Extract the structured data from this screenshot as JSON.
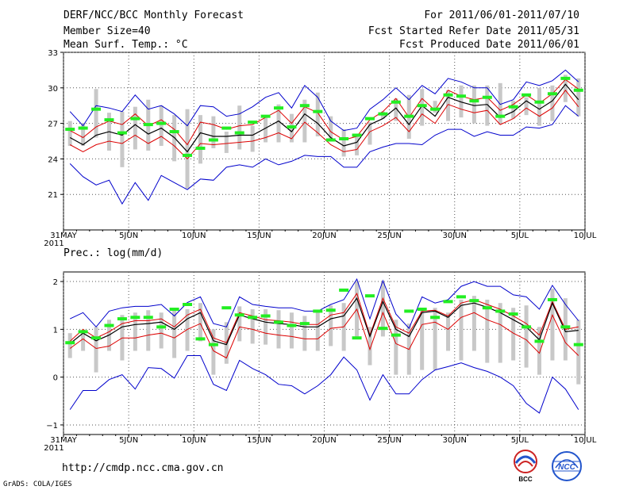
{
  "header": {
    "title": "DERF/NCC/BCC Monthly Forecast",
    "member_size": "Member Size=40",
    "variable": "Mean Surf. Temp.: °C",
    "period": "For 2011/06/01-2011/07/10",
    "started": "Fcst Started Refer Date 2011/05/31",
    "produced": "Fcst Produced Date 2011/06/01"
  },
  "footer": {
    "url": "http://cmdp.ncc.cma.gov.cn",
    "credit": "GrADS: COLA/IGES",
    "logo_bcc": "BCC",
    "logo_ncc": "NCC"
  },
  "colors": {
    "max_min": "#0000cc",
    "spread": "#dd0000",
    "mean": "#000000",
    "box": "#c8c8c8",
    "marker": "#22ee22",
    "grid": "#555555"
  },
  "chart_data": [
    {
      "type": "line",
      "title": "Mean Surf. Temp.: °C",
      "x": [
        0,
        1,
        2,
        3,
        4,
        5,
        6,
        7,
        8,
        9,
        10,
        11,
        12,
        13,
        14,
        15,
        16,
        17,
        18,
        19,
        20,
        21,
        22,
        23,
        24,
        25,
        26,
        27,
        28,
        29,
        30,
        31,
        32,
        33,
        34,
        35,
        36,
        37,
        38,
        39
      ],
      "xticks": [
        0,
        5,
        10,
        15,
        20,
        25,
        30,
        35,
        40
      ],
      "xticklabels": [
        "31MAY",
        "5JUN",
        "10JUN",
        "15JUN",
        "20JUN",
        "25JUN",
        "30JUN",
        "5JUL",
        "10JUL"
      ],
      "xsublabel": "2011",
      "yticks": [
        21,
        24,
        27,
        30,
        33
      ],
      "yticklabels": [
        "21",
        "24",
        "27",
        "30",
        "33"
      ],
      "ylim": [
        18,
        33
      ],
      "series": [
        {
          "name": "max",
          "values": [
            28.0,
            26.8,
            28.5,
            28.3,
            28.0,
            29.4,
            28.2,
            28.5,
            27.8,
            26.8,
            28.5,
            28.4,
            27.6,
            27.8,
            28.4,
            29.2,
            29.6,
            28.3,
            30.2,
            29.2,
            27.2,
            26.4,
            26.6,
            28.2,
            29.0,
            30.0,
            29.0,
            30.2,
            29.5,
            30.8,
            30.5,
            30.0,
            30.0,
            28.6,
            29.0,
            30.5,
            30.2,
            30.6,
            31.5,
            30.5
          ]
        },
        {
          "name": "upper",
          "values": [
            26.4,
            25.8,
            26.7,
            27.2,
            26.9,
            27.8,
            26.8,
            27.3,
            26.5,
            25.2,
            27.1,
            26.9,
            26.5,
            26.8,
            26.9,
            27.5,
            28.1,
            27.0,
            28.4,
            27.9,
            26.3,
            25.6,
            25.9,
            27.3,
            28.0,
            29.1,
            27.5,
            29.1,
            28.1,
            29.8,
            29.3,
            29.0,
            29.2,
            28.1,
            28.6,
            29.4,
            28.7,
            29.5,
            30.7,
            29.9
          ]
        },
        {
          "name": "mean",
          "values": [
            25.8,
            25.2,
            26.0,
            26.3,
            26.0,
            26.9,
            26.1,
            26.6,
            25.8,
            24.6,
            26.2,
            25.9,
            25.9,
            26.0,
            26.0,
            26.6,
            27.2,
            26.3,
            27.8,
            27.0,
            25.8,
            25.1,
            25.4,
            26.9,
            27.4,
            28.3,
            26.9,
            28.5,
            27.6,
            29.2,
            28.8,
            28.5,
            28.6,
            27.5,
            28.0,
            28.9,
            28.2,
            28.9,
            30.3,
            29.0
          ]
        },
        {
          "name": "lower",
          "values": [
            25.2,
            24.6,
            25.2,
            25.5,
            25.3,
            26.0,
            25.3,
            25.9,
            25.1,
            24.0,
            25.3,
            25.2,
            25.3,
            25.4,
            25.5,
            25.8,
            26.2,
            25.7,
            27.1,
            26.2,
            25.2,
            24.6,
            24.8,
            26.3,
            26.8,
            27.5,
            26.3,
            27.8,
            27.0,
            28.6,
            28.2,
            27.9,
            28.1,
            26.9,
            27.4,
            28.3,
            27.6,
            28.3,
            29.8,
            28.4
          ]
        },
        {
          "name": "min",
          "values": [
            23.6,
            22.5,
            21.8,
            22.2,
            20.2,
            22.0,
            20.5,
            22.6,
            22.0,
            21.4,
            22.3,
            22.2,
            23.3,
            23.5,
            23.3,
            24.0,
            23.5,
            23.8,
            24.3,
            24.2,
            24.2,
            23.3,
            23.3,
            24.6,
            25.0,
            25.3,
            25.3,
            25.2,
            26.0,
            26.5,
            26.5,
            25.9,
            26.3,
            26.0,
            26.0,
            26.7,
            26.6,
            26.9,
            28.5,
            27.6
          ]
        },
        {
          "name": "box_top",
          "values": [
            27.2,
            27.0,
            29.9,
            27.9,
            28.0,
            28.4,
            29.0,
            28.5,
            27.7,
            28.2,
            27.7,
            27.6,
            26.3,
            28.5,
            26.8,
            27.6,
            28.6,
            27.8,
            29.0,
            29.6,
            27.6,
            26.5,
            26.0,
            27.1,
            28.0,
            29.1,
            29.4,
            29.9,
            28.9,
            29.8,
            30.2,
            30.2,
            30.2,
            30.4,
            28.9,
            29.2,
            30.0,
            30.2,
            31.1,
            30.8
          ]
        },
        {
          "name": "box_bottom",
          "values": [
            25.1,
            25.1,
            25.8,
            24.7,
            23.3,
            24.8,
            24.7,
            25.1,
            23.8,
            21.5,
            23.6,
            24.9,
            24.5,
            24.8,
            24.6,
            25.4,
            25.4,
            25.4,
            25.4,
            25.9,
            25.5,
            24.2,
            24.3,
            25.2,
            27.4,
            27.2,
            25.7,
            26.8,
            27.9,
            27.2,
            27.5,
            27.0,
            26.8,
            26.9,
            27.4,
            27.7,
            26.8,
            27.2,
            28.8,
            27.6
          ]
        },
        {
          "name": "marker",
          "values": [
            26.5,
            26.6,
            28.2,
            27.3,
            26.2,
            27.4,
            26.9,
            27.0,
            26.3,
            24.3,
            24.9,
            25.6,
            26.6,
            26.2,
            27.1,
            27.6,
            28.3,
            26.7,
            28.5,
            28.0,
            25.6,
            25.7,
            26.0,
            27.4,
            27.8,
            28.8,
            27.6,
            28.5,
            28.2,
            29.4,
            29.3,
            28.9,
            29.2,
            27.6,
            28.4,
            29.4,
            28.8,
            29.5,
            30.8,
            29.8
          ]
        }
      ]
    },
    {
      "type": "line",
      "title": "Prec.: log(mm/d)",
      "x": [
        0,
        1,
        2,
        3,
        4,
        5,
        6,
        7,
        8,
        9,
        10,
        11,
        12,
        13,
        14,
        15,
        16,
        17,
        18,
        19,
        20,
        21,
        22,
        23,
        24,
        25,
        26,
        27,
        28,
        29,
        30,
        31,
        32,
        33,
        34,
        35,
        36,
        37,
        38,
        39
      ],
      "xticks": [
        0,
        5,
        10,
        15,
        20,
        25,
        30,
        35,
        40
      ],
      "xticklabels": [
        "31MAY",
        "5JUN",
        "10JUN",
        "15JUN",
        "20JUN",
        "25JUN",
        "30JUN",
        "5JUL",
        "10JUL"
      ],
      "xsublabel": "2011",
      "yticks": [
        -1,
        0,
        1,
        2
      ],
      "yticklabels": [
        "−1",
        "0",
        "1",
        "2"
      ],
      "ylim": [
        -1.2,
        2.2
      ],
      "series": [
        {
          "name": "max",
          "values": [
            1.22,
            1.35,
            1.05,
            1.38,
            1.45,
            1.48,
            1.48,
            1.52,
            1.28,
            1.56,
            1.68,
            1.12,
            1.05,
            1.68,
            1.52,
            1.48,
            1.45,
            1.45,
            1.38,
            1.38,
            1.52,
            1.62,
            2.05,
            1.22,
            2.02,
            1.32,
            1.02,
            1.68,
            1.55,
            1.62,
            1.9,
            2.0,
            1.9,
            1.9,
            1.72,
            1.68,
            1.42,
            1.92,
            1.52,
            1.18
          ]
        },
        {
          "name": "upper",
          "values": [
            0.75,
            1.0,
            0.82,
            0.95,
            1.12,
            1.18,
            1.18,
            1.22,
            1.05,
            1.3,
            1.42,
            0.82,
            0.72,
            1.35,
            1.28,
            1.2,
            1.18,
            1.15,
            1.1,
            1.1,
            1.3,
            1.35,
            1.75,
            0.88,
            1.65,
            1.05,
            0.92,
            1.38,
            1.4,
            1.28,
            1.55,
            1.62,
            1.52,
            1.42,
            1.28,
            1.12,
            0.88,
            1.58,
            1.0,
            1.05
          ]
        },
        {
          "name": "mean",
          "values": [
            0.7,
            0.92,
            0.76,
            0.88,
            1.05,
            1.1,
            1.12,
            1.15,
            1.0,
            1.22,
            1.35,
            0.76,
            0.68,
            1.3,
            1.22,
            1.15,
            1.12,
            1.1,
            1.05,
            1.05,
            1.22,
            1.28,
            1.65,
            0.85,
            1.58,
            1.0,
            0.85,
            1.35,
            1.38,
            1.25,
            1.5,
            1.55,
            1.46,
            1.35,
            1.2,
            1.05,
            0.78,
            1.55,
            0.95,
            0.98
          ]
        },
        {
          "name": "lower",
          "values": [
            0.6,
            0.8,
            0.6,
            0.65,
            0.82,
            0.82,
            0.88,
            0.92,
            0.82,
            1.0,
            1.12,
            0.55,
            0.4,
            1.05,
            1.0,
            0.92,
            0.88,
            0.85,
            0.8,
            0.8,
            1.02,
            1.05,
            1.42,
            0.58,
            1.35,
            0.7,
            0.58,
            1.1,
            1.15,
            1.0,
            1.25,
            1.35,
            1.2,
            1.1,
            0.92,
            0.78,
            0.5,
            1.3,
            0.72,
            0.45
          ]
        },
        {
          "name": "min",
          "values": [
            -0.68,
            -0.28,
            -0.28,
            -0.05,
            0.05,
            -0.25,
            0.2,
            0.18,
            -0.02,
            0.45,
            0.45,
            -0.15,
            -0.28,
            0.35,
            0.18,
            0.05,
            -0.15,
            -0.18,
            -0.35,
            -0.18,
            0.05,
            0.42,
            0.15,
            -0.48,
            0.05,
            -0.35,
            -0.35,
            -0.05,
            0.15,
            0.22,
            0.3,
            0.2,
            0.12,
            0.0,
            -0.18,
            -0.55,
            -0.75,
            0.0,
            -0.25,
            -0.68
          ]
        },
        {
          "name": "box_top",
          "values": [
            0.92,
            0.95,
            1.05,
            1.2,
            1.3,
            1.35,
            1.4,
            1.35,
            1.4,
            1.42,
            1.55,
            1.0,
            1.15,
            1.48,
            1.42,
            1.42,
            1.4,
            1.35,
            1.28,
            1.35,
            1.5,
            1.55,
            2.0,
            1.05,
            2.0,
            1.2,
            1.12,
            1.45,
            1.45,
            1.35,
            1.62,
            1.7,
            1.62,
            1.55,
            1.45,
            1.5,
            1.05,
            1.85,
            1.65,
            1.2
          ]
        },
        {
          "name": "box_bottom",
          "values": [
            0.4,
            0.55,
            0.1,
            0.55,
            0.35,
            0.55,
            0.55,
            0.6,
            0.4,
            0.55,
            0.75,
            0.05,
            0.28,
            0.75,
            0.7,
            0.68,
            0.6,
            0.6,
            0.55,
            0.55,
            0.65,
            0.55,
            0.85,
            0.25,
            0.85,
            0.05,
            0.05,
            0.15,
            0.15,
            0.55,
            0.35,
            0.55,
            0.3,
            0.3,
            0.35,
            0.2,
            0.05,
            0.35,
            0.35,
            -0.15
          ]
        },
        {
          "name": "marker",
          "values": [
            0.72,
            0.95,
            0.82,
            1.08,
            1.22,
            1.25,
            1.25,
            1.05,
            1.42,
            1.52,
            0.8,
            0.68,
            1.45,
            1.3,
            1.25,
            1.28,
            1.15,
            1.08,
            1.12,
            1.38,
            1.4,
            1.82,
            0.82,
            1.7,
            1.02,
            0.88,
            1.38,
            1.42,
            1.25,
            1.58,
            1.68,
            1.6,
            1.45,
            1.38,
            1.32,
            1.05,
            0.75,
            1.62,
            1.05,
            0.68
          ]
        }
      ]
    }
  ]
}
